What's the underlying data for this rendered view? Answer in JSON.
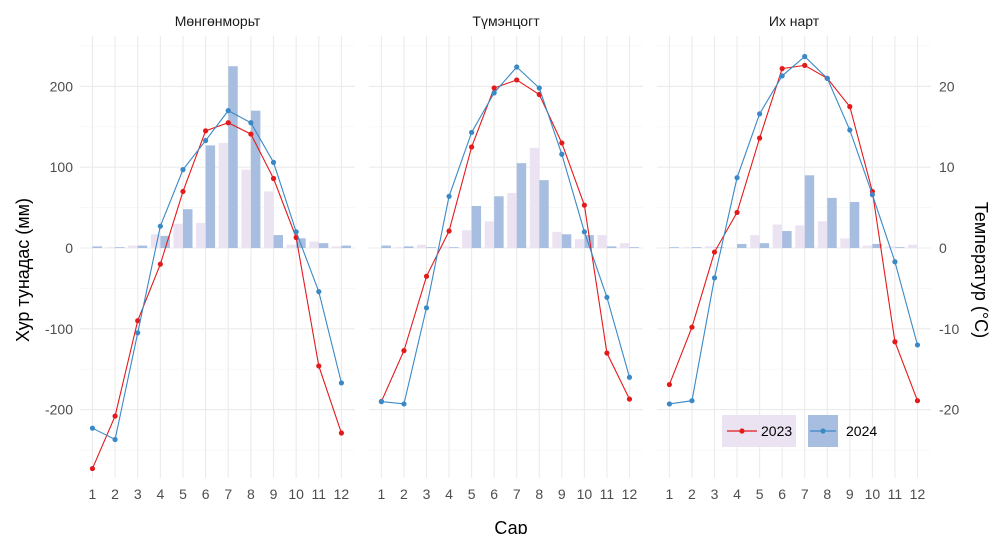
{
  "chart_data": {
    "type": "bar+line",
    "facets": [
      {
        "title": "Мөнгөнморьт",
        "precip_2023": [
          0,
          1,
          3,
          17,
          30,
          31,
          130,
          97,
          70,
          4,
          8,
          2
        ],
        "precip_2024": [
          2,
          1,
          3,
          15,
          48,
          127,
          225,
          170,
          16,
          12,
          6,
          3
        ],
        "temp_2023": [
          -27.3,
          -20.8,
          -9.0,
          -2.0,
          7.0,
          14.5,
          15.5,
          14.1,
          8.6,
          1.3,
          -14.6,
          -22.9
        ],
        "temp_2024": [
          -22.3,
          -23.7,
          -10.5,
          2.7,
          9.7,
          13.3,
          17.0,
          15.5,
          10.6,
          2.0,
          -5.4,
          -16.7
        ]
      },
      {
        "title": "Түмэнцогт",
        "precip_2023": [
          0,
          1,
          4,
          2,
          22,
          33,
          68,
          124,
          20,
          11,
          16,
          6
        ],
        "precip_2024": [
          3,
          2,
          1,
          1,
          52,
          64,
          105,
          84,
          17,
          16,
          2,
          1
        ],
        "temp_2023": [
          -19.0,
          -12.7,
          -3.5,
          2.1,
          12.5,
          19.8,
          20.8,
          19.0,
          13.0,
          5.3,
          -13.0,
          -18.7
        ],
        "temp_2024": [
          -19.0,
          -19.3,
          -7.4,
          6.4,
          14.3,
          19.2,
          22.4,
          19.8,
          11.6,
          2.0,
          -6.1,
          -16.0
        ]
      },
      {
        "title": "Их нарт",
        "precip_2023": [
          0,
          1,
          2,
          0,
          16,
          29,
          28,
          33,
          12,
          3,
          2,
          4
        ],
        "precip_2024": [
          1,
          1,
          1,
          5,
          6,
          21,
          90,
          62,
          57,
          5,
          1,
          0
        ],
        "temp_2023": [
          -16.9,
          -9.8,
          -0.5,
          4.4,
          13.6,
          22.2,
          22.6,
          21.0,
          17.5,
          7.0,
          -11.6,
          -18.9
        ],
        "temp_2024": [
          -19.3,
          -18.9,
          -3.7,
          8.7,
          16.6,
          21.3,
          23.7,
          21.0,
          14.6,
          6.6,
          -1.7,
          -12.0
        ]
      }
    ],
    "x": [
      1,
      2,
      3,
      4,
      5,
      6,
      7,
      8,
      9,
      10,
      11,
      12
    ],
    "xlabel": "Сар",
    "ylabel_left": "Хур тунадас (мм)",
    "ylabel_right": "Температур (°С)",
    "ylim_left": [
      -300,
      260
    ],
    "ylim_right": [
      -30,
      26
    ],
    "yticks_left": [
      200,
      100,
      0,
      -100,
      -200
    ],
    "yticks_right": [
      20,
      10,
      0,
      -10,
      -20
    ],
    "legend": [
      "2023",
      "2024"
    ],
    "legend_position": "bottom-right",
    "colors": {
      "bar_2023": "#ebe3f2",
      "bar_2024": "#a8bee0",
      "line_2023": "#e31a1c",
      "line_2024": "#3a89c6"
    },
    "grid": true
  }
}
